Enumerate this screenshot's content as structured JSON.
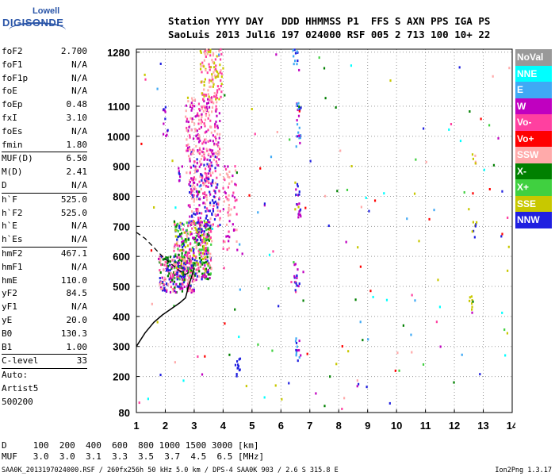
{
  "logo": {
    "line1": "Lowell",
    "line2": "DIGISONDE"
  },
  "header": {
    "line1": "Station YYYY DAY   DDD HHMMSS P1  FFS S AXN PPS IGA PS",
    "line2": "SaoLuis 2013 Jul16 197 024000 RSF 005 2 713 100 10+ 22"
  },
  "params": [
    {
      "label": "foF2",
      "value": "2.700"
    },
    {
      "label": "foF1",
      "value": "N/A"
    },
    {
      "label": "foF1p",
      "value": "N/A"
    },
    {
      "label": "foE",
      "value": "N/A"
    },
    {
      "label": "foEp",
      "value": "0.48"
    },
    {
      "label": "fxI",
      "value": "3.10"
    },
    {
      "label": "foEs",
      "value": "N/A"
    },
    {
      "label": "fmin",
      "value": "1.80"
    },
    {
      "label": "MUF(D)",
      "value": "6.50",
      "sep": true
    },
    {
      "label": "M(D)",
      "value": "2.41"
    },
    {
      "label": "D",
      "value": "N/A"
    },
    {
      "label": "h`F",
      "value": "525.0",
      "sep": true
    },
    {
      "label": "h`F2",
      "value": "525.0"
    },
    {
      "label": "h`E",
      "value": "N/A"
    },
    {
      "label": "h`Es",
      "value": "N/A"
    },
    {
      "label": "hmF2",
      "value": "467.1",
      "sep": true
    },
    {
      "label": "hmF1",
      "value": "N/A"
    },
    {
      "label": "hmE",
      "value": "110.0"
    },
    {
      "label": "yF2",
      "value": "84.5"
    },
    {
      "label": "yF1",
      "value": "N/A"
    },
    {
      "label": "yE",
      "value": "20.0"
    },
    {
      "label": "B0",
      "value": "130.3"
    },
    {
      "label": "B1",
      "value": "1.00"
    },
    {
      "label": "C-level",
      "value": "33",
      "sep": true
    },
    {
      "label": "Auto:",
      "value": "",
      "sep": true
    },
    {
      "label": "Artist5",
      "value": ""
    },
    {
      "label": "500200",
      "value": ""
    }
  ],
  "legend": [
    {
      "label": "NoVal",
      "color": "#999999"
    },
    {
      "label": "NNE",
      "color": "#00ffff"
    },
    {
      "label": "E",
      "color": "#3fa9f5"
    },
    {
      "label": "W",
      "color": "#c000c0"
    },
    {
      "label": "Vo-",
      "color": "#ff40a0"
    },
    {
      "label": "Vo+",
      "color": "#ff0000"
    },
    {
      "label": "SSW",
      "color": "#ffaaaa"
    },
    {
      "label": "X-",
      "color": "#008000"
    },
    {
      "label": "X+",
      "color": "#40d040"
    },
    {
      "label": "SSE",
      "color": "#c8c800"
    },
    {
      "label": "NNW",
      "color": "#2020e0"
    }
  ],
  "footer": {
    "line1": "D     100  200  400  600  800 1000 1500 3000 [km]",
    "line2": "MUF   3.0  3.0  3.1  3.3  3.5  3.7  4.5  6.5 [MHz]",
    "note": "SAA0K_2013197024000.RSF / 260fx256h 50 kHz 5.0 km / DPS-4 SAA0K 903 / 2.6 S 315.8 E",
    "version": "Ion2Png 1.3.17"
  },
  "chart_data": {
    "type": "scatter",
    "xlim": [
      1,
      14
    ],
    "ylim": [
      80,
      1290
    ],
    "xticks": [
      1,
      2,
      3,
      4,
      5,
      6,
      7,
      8,
      9,
      10,
      11,
      12,
      13,
      14
    ],
    "yticks": [
      80,
      200,
      300,
      400,
      500,
      600,
      700,
      800,
      900,
      1000,
      1100,
      1280
    ],
    "grid": true,
    "trace_profile": [
      [
        1.0,
        300
      ],
      [
        1.3,
        345
      ],
      [
        1.6,
        380
      ],
      [
        1.9,
        405
      ],
      [
        2.2,
        425
      ],
      [
        2.5,
        445
      ],
      [
        2.7,
        462
      ],
      [
        2.75,
        480
      ],
      [
        2.8,
        500
      ],
      [
        2.9,
        530
      ],
      [
        3.0,
        560
      ]
    ],
    "trace_virtual": [
      [
        1.0,
        680
      ],
      [
        1.3,
        660
      ],
      [
        1.6,
        630
      ],
      [
        1.9,
        600
      ],
      [
        2.2,
        575
      ],
      [
        2.45,
        555
      ],
      [
        2.6,
        545
      ],
      [
        2.7,
        540
      ],
      [
        2.8,
        545
      ]
    ],
    "echo_clusters": [
      {
        "x": [
          1.8,
          3.0
        ],
        "y": [
          480,
          600
        ],
        "n": 280,
        "colors": [
          "#c000c0",
          "#ff40a0",
          "#2020e0",
          "#ffaaaa",
          "#008000"
        ]
      },
      {
        "x": [
          2.3,
          3.6
        ],
        "y": [
          520,
          720
        ],
        "n": 420,
        "colors": [
          "#c000c0",
          "#ff40a0",
          "#2020e0",
          "#ffaaaa",
          "#40d040",
          "#008000",
          "#c8c800"
        ]
      },
      {
        "x": [
          2.8,
          3.9
        ],
        "y": [
          700,
          950
        ],
        "n": 260,
        "colors": [
          "#ff40a0",
          "#ffaaaa",
          "#c000c0",
          "#2020e0"
        ]
      },
      {
        "x": [
          2.7,
          3.9
        ],
        "y": [
          940,
          1130
        ],
        "n": 180,
        "colors": [
          "#ffaaaa",
          "#ff40a0",
          "#c000c0"
        ]
      },
      {
        "x": [
          3.2,
          4.0
        ],
        "y": [
          1120,
          1290
        ],
        "n": 110,
        "colors": [
          "#ffaaaa",
          "#c8c800",
          "#ff40a0"
        ]
      },
      {
        "x": [
          4.0,
          4.5
        ],
        "y": [
          620,
          900
        ],
        "n": 60,
        "colors": [
          "#ffaaaa",
          "#ff40a0",
          "#c000c0"
        ]
      }
    ],
    "echo_strips": [
      {
        "x": 6.6,
        "y": [
          960,
          1110
        ],
        "n": 22,
        "colors": [
          "#2020e0",
          "#c000c0",
          "#3fa9f5"
        ]
      },
      {
        "x": 6.6,
        "y": [
          730,
          850
        ],
        "n": 18,
        "colors": [
          "#2020e0",
          "#c000c0"
        ]
      },
      {
        "x": 6.55,
        "y": [
          480,
          580
        ],
        "n": 16,
        "colors": [
          "#2020e0",
          "#c000c0",
          "#ff40a0"
        ]
      },
      {
        "x": 6.6,
        "y": [
          250,
          330
        ],
        "n": 14,
        "colors": [
          "#2020e0",
          "#3fa9f5",
          "#c000c0"
        ]
      },
      {
        "x": 6.5,
        "y": [
          1240,
          1290
        ],
        "n": 10,
        "colors": [
          "#2020e0",
          "#3fa9f5"
        ]
      },
      {
        "x": 12.7,
        "y": [
          660,
          720
        ],
        "n": 8,
        "colors": [
          "#008000",
          "#c8c800",
          "#2020e0"
        ]
      },
      {
        "x": 12.6,
        "y": [
          420,
          470
        ],
        "n": 8,
        "colors": [
          "#008000",
          "#c8c800"
        ]
      },
      {
        "x": 12.7,
        "y": [
          900,
          940
        ],
        "n": 6,
        "colors": [
          "#c8c800",
          "#ffaaaa"
        ]
      },
      {
        "x": 2.0,
        "y": [
          1000,
          1100
        ],
        "n": 12,
        "colors": [
          "#2020e0",
          "#c000c0"
        ]
      },
      {
        "x": 4.5,
        "y": [
          200,
          260
        ],
        "n": 12,
        "colors": [
          "#2020e0"
        ]
      },
      {
        "x": 2.5,
        "y": [
          850,
          900
        ],
        "n": 8,
        "colors": [
          "#2020e0",
          "#c000c0"
        ]
      }
    ],
    "noise_points": 170,
    "noise_colors": [
      "#2020e0",
      "#3fa9f5",
      "#c000c0",
      "#ff40a0",
      "#ff0000",
      "#008000",
      "#40d040",
      "#c8c800",
      "#00ffff",
      "#ffaaaa"
    ]
  }
}
